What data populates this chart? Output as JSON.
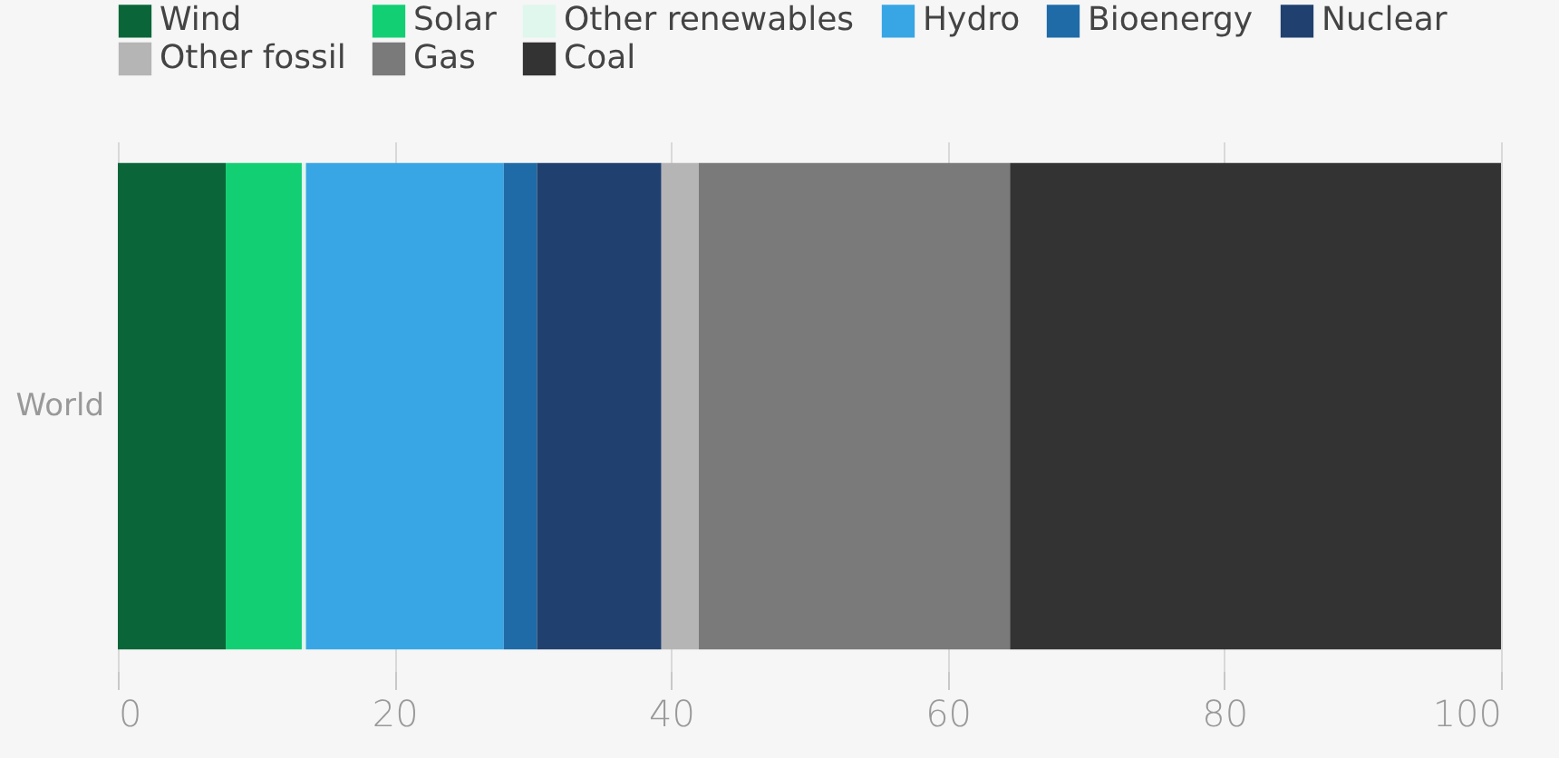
{
  "chart_data": {
    "type": "bar",
    "orientation": "horizontal",
    "stacked": true,
    "categories": [
      "World"
    ],
    "series": [
      {
        "name": "Wind",
        "color": "#0a6638",
        "values": [
          7.8
        ]
      },
      {
        "name": "Solar",
        "color": "#12cf74",
        "values": [
          5.5
        ]
      },
      {
        "name": "Other renewables",
        "color": "#dff7ec",
        "values": [
          0.3
        ]
      },
      {
        "name": "Hydro",
        "color": "#38a6e4",
        "values": [
          14.3
        ]
      },
      {
        "name": "Bioenergy",
        "color": "#1e6ba8",
        "values": [
          2.4
        ]
      },
      {
        "name": "Nuclear",
        "color": "#20406f",
        "values": [
          9.0
        ]
      },
      {
        "name": "Other fossil",
        "color": "#b5b5b5",
        "values": [
          2.7
        ]
      },
      {
        "name": "Gas",
        "color": "#7a7a7a",
        "values": [
          22.5
        ]
      },
      {
        "name": "Coal",
        "color": "#333333",
        "values": [
          35.5
        ]
      }
    ],
    "xlim": [
      0,
      100
    ],
    "xticks": [
      0,
      20,
      40,
      60,
      80,
      100
    ],
    "grid": "x",
    "legend": "top"
  }
}
